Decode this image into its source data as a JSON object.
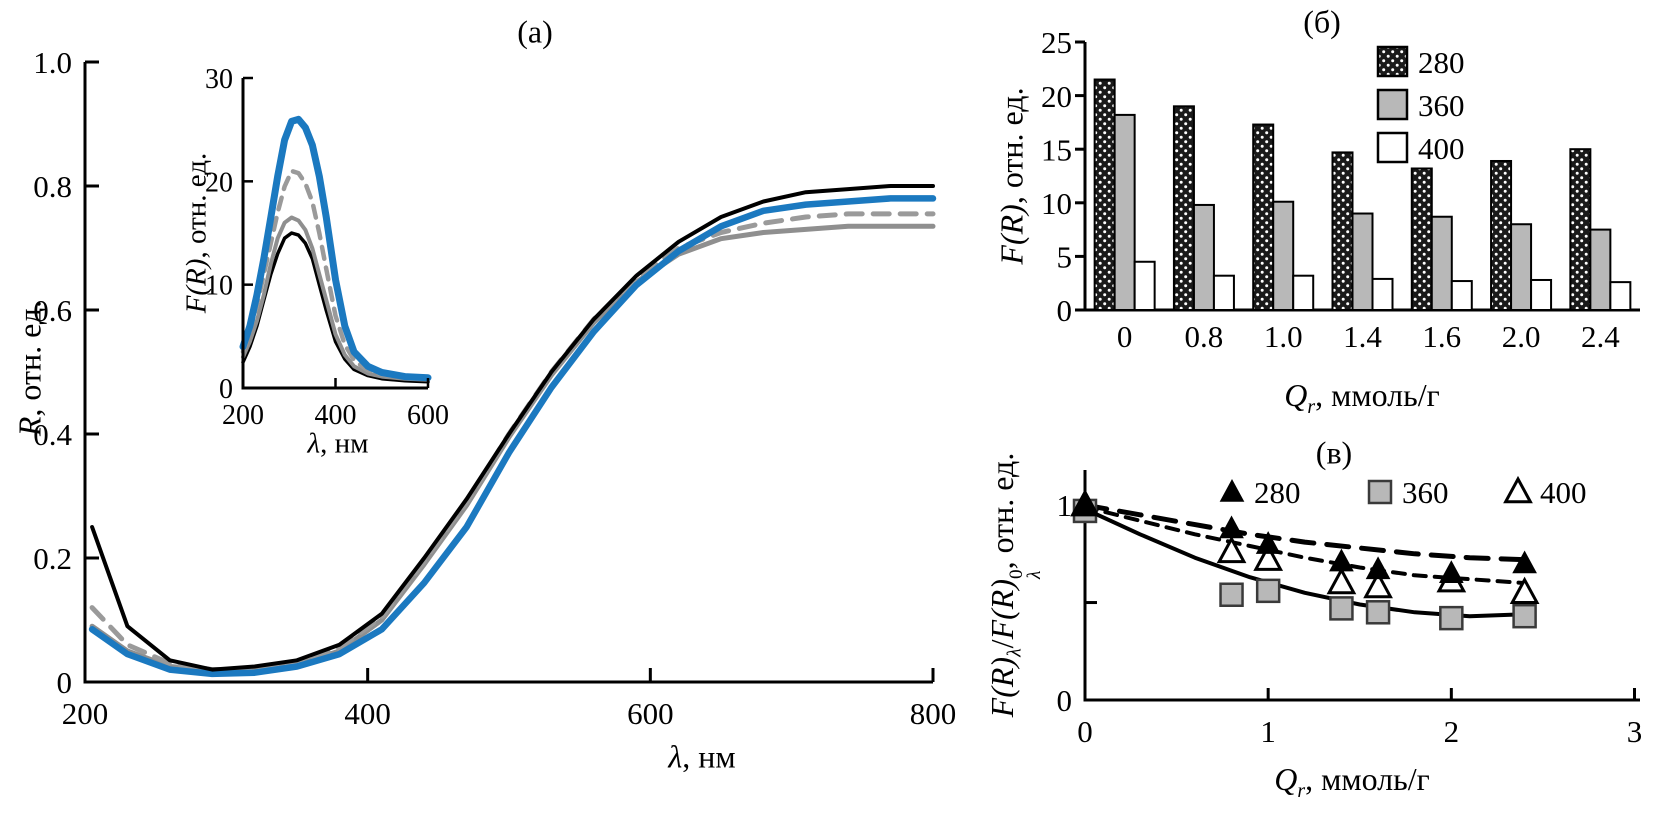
{
  "labels": {
    "panel_a": {
      "title": "(а)",
      "ylabel_math": "R",
      "ylabel_rest": ", отн. ед.",
      "xlabel_math": "λ",
      "xlabel_rest": ", нм"
    },
    "inset": {
      "ylabel_math": "F(R)",
      "ylabel_rest": ", отн. ед.",
      "xlabel_math": "λ",
      "xlabel_rest": ", нм"
    },
    "panel_b": {
      "title": "(б)",
      "ylabel_math": "F(R)",
      "ylabel_rest": ", отн. ед.",
      "xlabel_math": "Q",
      "xlabel_sub": "r",
      "xlabel_rest": ", ммоль/г"
    },
    "panel_c": {
      "title": "(в)",
      "ylabel_m1": "F(R)",
      "ylabel_sub1": "λ",
      "ylabel_slash": "/",
      "ylabel_m2": "F(R)",
      "ylabel_sup": "0",
      "ylabel_sub2": "λ",
      "ylabel_rest": ", отн. ед.",
      "xlabel_math": "Q",
      "xlabel_sub": "r",
      "xlabel_rest": ", ммоль/г"
    }
  },
  "chart_data": [
    {
      "id": "panel_a",
      "type": "line",
      "title": "(а)",
      "xlabel": "λ, нм",
      "ylabel": "R, отн. ед.",
      "xlim": [
        200,
        800
      ],
      "ylim": [
        0,
        1.0
      ],
      "xticks": [
        200,
        400,
        600,
        800
      ],
      "xtick_labels": [
        "200",
        "400",
        "600",
        "800"
      ],
      "yticks": [
        0,
        0.2,
        0.4,
        0.6,
        0.8,
        1.0
      ],
      "ytick_labels": [
        "0",
        "0.2",
        "0.4",
        "0.6",
        "0.8",
        "1.0"
      ],
      "x": [
        205,
        230,
        260,
        290,
        320,
        350,
        380,
        410,
        440,
        470,
        500,
        530,
        560,
        590,
        620,
        650,
        680,
        710,
        740,
        770,
        800
      ],
      "series": [
        {
          "name": "gray-solid",
          "color": "#8f8f8f",
          "width": 5,
          "y": [
            0.09,
            0.05,
            0.025,
            0.02,
            0.02,
            0.028,
            0.05,
            0.1,
            0.19,
            0.285,
            0.395,
            0.495,
            0.58,
            0.645,
            0.69,
            0.715,
            0.725,
            0.73,
            0.735,
            0.735,
            0.735
          ]
        },
        {
          "name": "gray-dashed",
          "color": "#9a9a9a",
          "width": 5,
          "dash": "16 11",
          "y": [
            0.12,
            0.06,
            0.03,
            0.02,
            0.02,
            0.03,
            0.055,
            0.105,
            0.195,
            0.29,
            0.4,
            0.5,
            0.585,
            0.65,
            0.7,
            0.725,
            0.74,
            0.75,
            0.755,
            0.755,
            0.755
          ]
        },
        {
          "name": "blue-solid",
          "color": "#1b79c0",
          "width": 6.5,
          "y": [
            0.085,
            0.045,
            0.02,
            0.013,
            0.015,
            0.025,
            0.045,
            0.085,
            0.16,
            0.25,
            0.37,
            0.475,
            0.565,
            0.64,
            0.695,
            0.735,
            0.76,
            0.77,
            0.775,
            0.78,
            0.78
          ]
        },
        {
          "name": "black-solid",
          "color": "#000000",
          "width": 4,
          "y": [
            0.25,
            0.09,
            0.035,
            0.02,
            0.025,
            0.035,
            0.06,
            0.11,
            0.2,
            0.295,
            0.4,
            0.5,
            0.585,
            0.655,
            0.71,
            0.75,
            0.775,
            0.79,
            0.795,
            0.8,
            0.8
          ]
        }
      ]
    },
    {
      "id": "panel_a_inset",
      "type": "line",
      "xlabel": "λ, нм",
      "ylabel": "F(R), отн. ед.",
      "xlim": [
        200,
        600
      ],
      "ylim": [
        0,
        30
      ],
      "xticks": [
        200,
        400,
        600
      ],
      "xtick_labels": [
        "200",
        "400",
        "600"
      ],
      "yticks": [
        0,
        10,
        20,
        30
      ],
      "ytick_labels": [
        "0",
        "10",
        "20",
        "30"
      ],
      "x": [
        200,
        215,
        230,
        245,
        260,
        275,
        290,
        305,
        320,
        335,
        350,
        365,
        380,
        400,
        420,
        440,
        470,
        500,
        550,
        600
      ],
      "series": [
        {
          "name": "black-solid",
          "color": "#000000",
          "width": 3.5,
          "y": [
            2.5,
            4,
            6,
            8.5,
            11,
            13,
            14.5,
            15,
            14.8,
            14,
            12.5,
            10,
            7.5,
            4.5,
            2.8,
            1.8,
            1.2,
            0.9,
            0.7,
            0.6
          ]
        },
        {
          "name": "gray-solid",
          "color": "#8f8f8f",
          "width": 4,
          "y": [
            3,
            4.5,
            6.5,
            9,
            12,
            14.5,
            16,
            16.5,
            16.2,
            15.3,
            13.5,
            11,
            8.5,
            5.2,
            3.2,
            2.1,
            1.4,
            1.1,
            0.9,
            0.8
          ]
        },
        {
          "name": "gray-dashed",
          "color": "#9a9a9a",
          "width": 4.5,
          "dash": "12 9",
          "y": [
            3.5,
            5.5,
            8,
            11,
            14,
            17,
            19.5,
            21,
            20.8,
            19.8,
            18,
            15,
            11.5,
            7,
            4.2,
            2.7,
            1.7,
            1.3,
            1.0,
            0.9
          ]
        },
        {
          "name": "blue-solid",
          "color": "#1b79c0",
          "width": 7,
          "y": [
            4,
            6,
            9,
            12.5,
            16.5,
            20.5,
            24,
            25.8,
            26,
            25.2,
            23.5,
            20.5,
            16.5,
            10.5,
            6,
            3.5,
            2.1,
            1.5,
            1.1,
            1.0
          ]
        }
      ]
    },
    {
      "id": "panel_b",
      "type": "bar",
      "title": "(б)",
      "xlabel": "Qr, ммоль/г",
      "ylabel": "F(R), отн. ед.",
      "categories": [
        "0",
        "0.8",
        "1.0",
        "1.4",
        "1.6",
        "2.0",
        "2.4"
      ],
      "ylim": [
        0,
        25
      ],
      "yticks": [
        0,
        5,
        10,
        15,
        20,
        25
      ],
      "ytick_labels": [
        "0",
        "5",
        "10",
        "15",
        "20",
        "25"
      ],
      "legend_position": "top-right-inside",
      "series": [
        {
          "name": "280",
          "fill": "dots",
          "values": [
            21.5,
            19.0,
            17.3,
            14.7,
            13.2,
            13.9,
            15.0
          ]
        },
        {
          "name": "360",
          "fill": "#b8b8b8",
          "values": [
            18.2,
            9.8,
            10.1,
            9.0,
            8.7,
            8.0,
            7.5
          ]
        },
        {
          "name": "400",
          "fill": "#ffffff",
          "values": [
            4.5,
            3.2,
            3.2,
            2.9,
            2.7,
            2.8,
            2.6
          ]
        }
      ]
    },
    {
      "id": "panel_c",
      "type": "scatter",
      "title": "(в)",
      "xlabel": "Qr, ммоль/г",
      "ylabel": "F(R)λ/F(R)0λ, отн. ед.",
      "xlim": [
        0,
        3.03
      ],
      "ylim": [
        0,
        1.18
      ],
      "xticks": [
        0,
        1,
        2,
        3
      ],
      "xtick_labels": [
        "0",
        "1",
        "2",
        "3"
      ],
      "yticks": [
        0,
        0.5,
        1
      ],
      "ytick_labels": [
        "0",
        "",
        "1"
      ],
      "legend_position": "top-inside-row",
      "x": [
        0,
        0.8,
        1.0,
        1.4,
        1.6,
        2.0,
        2.4
      ],
      "trend_x": [
        0,
        0.3,
        0.6,
        0.9,
        1.2,
        1.5,
        1.8,
        2.1,
        2.4
      ],
      "series": [
        {
          "name": "280",
          "marker": "triangle-filled",
          "trend_dash": "22 13",
          "trend_width": 5,
          "values": [
            1.0,
            0.88,
            0.8,
            0.71,
            0.67,
            0.65,
            0.7
          ],
          "trend": [
            1.0,
            0.95,
            0.9,
            0.85,
            0.81,
            0.78,
            0.75,
            0.73,
            0.72
          ]
        },
        {
          "name": "360",
          "marker": "square-gray",
          "trend_dash": "",
          "trend_width": 4,
          "values": [
            0.97,
            0.54,
            0.56,
            0.47,
            0.45,
            0.42,
            0.43
          ],
          "trend": [
            0.98,
            0.85,
            0.73,
            0.63,
            0.55,
            0.49,
            0.45,
            0.43,
            0.44
          ]
        },
        {
          "name": "400",
          "marker": "triangle-open",
          "trend_dash": "12 9",
          "trend_width": 4,
          "values": [
            1.0,
            0.76,
            0.72,
            0.6,
            0.58,
            0.61,
            0.55
          ],
          "trend": [
            0.99,
            0.92,
            0.85,
            0.79,
            0.73,
            0.68,
            0.64,
            0.62,
            0.6
          ]
        }
      ]
    }
  ]
}
